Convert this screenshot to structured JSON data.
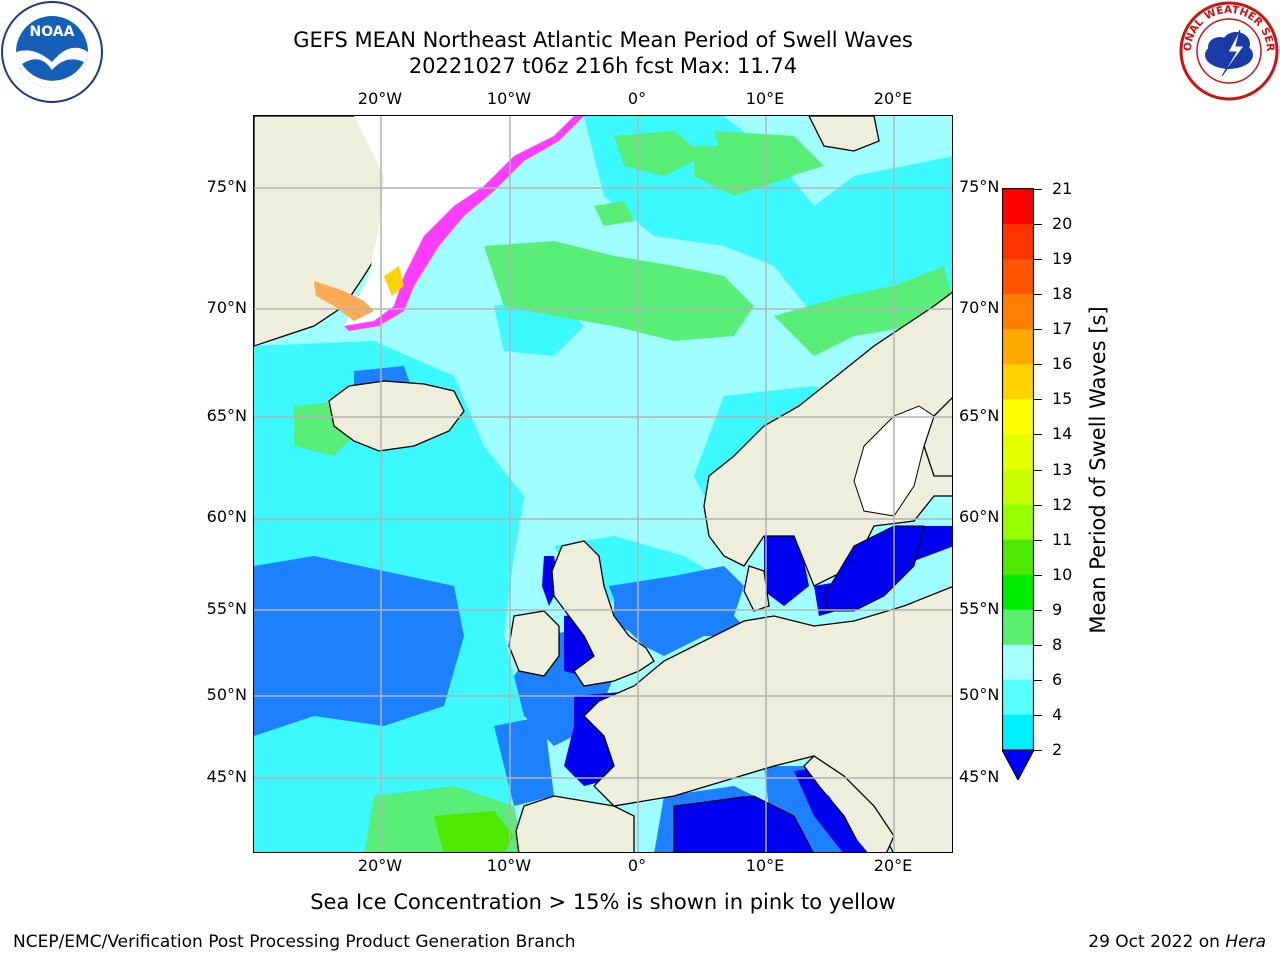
{
  "title_line1": "GEFS MEAN Northeast Atlantic Mean Period of Swell Waves",
  "title_line2": "20221027 t06z 216h fcst   Max: 11.74",
  "subtitle": "Sea Ice Concentration > 15% is shown in pink to yellow",
  "credit": "NCEP/EMC/Verification Post Processing Product Generation Branch",
  "date_note": "29 Oct 2022 on ",
  "date_host": "Hera",
  "logos": {
    "noaa_text": "NOAA",
    "nws_text": "NATIONAL WEATHER SERVICE"
  },
  "lon_labels": [
    "20°W",
    "10°W",
    "0°",
    "10°E",
    "20°E"
  ],
  "lat_labels": [
    "75°N",
    "70°N",
    "65°N",
    "60°N",
    "55°N",
    "50°N",
    "45°N"
  ],
  "colorbar": {
    "title": "Mean Period of Swell Waves [s]",
    "labels": [
      "21",
      "20",
      "19",
      "18",
      "17",
      "16",
      "15",
      "14",
      "13",
      "12",
      "11",
      "10",
      "9",
      "8",
      "6",
      "4",
      "2"
    ],
    "colors": [
      "#ff0000",
      "#ff3300",
      "#ff5500",
      "#ff8000",
      "#ffaa00",
      "#ffd200",
      "#ffff00",
      "#e6ff00",
      "#c8ff00",
      "#96ff00",
      "#4ee800",
      "#00ee00",
      "#5af06e",
      "#a6ffff",
      "#55ffff",
      "#00f0ff",
      "#0080ff"
    ],
    "extend_color": "#0000ff"
  },
  "colors": {
    "land": "#eeeedc",
    "ocean_base": "#9ffefe",
    "ocean_cyan": "#3cf8ff",
    "ocean_green": "#58ee78",
    "ocean_blue": "#1c80ff",
    "ocean_deep": "#0000f0",
    "ice_pink": "#ff3cff",
    "ice_orange": "#ffaa55",
    "grid": "#b4b4b4"
  }
}
